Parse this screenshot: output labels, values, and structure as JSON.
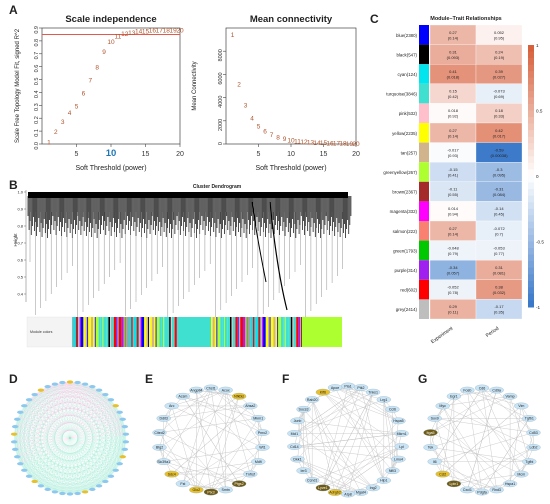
{
  "panel_letters": {
    "a": "A",
    "b": "B",
    "c": "C",
    "d": "D",
    "e": "E",
    "f": "F",
    "g": "G"
  },
  "colors": {
    "threshold_line": "#e3594d",
    "point_label": "#b0552e",
    "dendro": "#000000",
    "heat_pos": "#d7603d",
    "heat_neg": "#3a78c9",
    "network_link": "#c0c0c0",
    "node_fill": "#c9e4f5",
    "hub_fill": "#e7c02c",
    "hub_dark": "#6e5a14"
  },
  "chart_data": [
    {
      "type": "scatter",
      "title": "Scale independence",
      "xlabel": "Soft Threshold (power)",
      "ylabel": "Scale Free Topology Model Fit, signed R^2",
      "xlim": [
        0,
        20
      ],
      "ylim": [
        0.0,
        0.9
      ],
      "xticks": [
        "5",
        "10",
        "15",
        "20"
      ],
      "yticks": [
        "0.0",
        "0.1",
        "0.2",
        "0.3",
        "0.4",
        "0.5",
        "0.6",
        "0.7",
        "0.8",
        "0.9"
      ],
      "highlight_tick": "10",
      "threshold": 0.85,
      "points": [
        {
          "x": 1,
          "y": 0.02
        },
        {
          "x": 2,
          "y": 0.1
        },
        {
          "x": 3,
          "y": 0.18
        },
        {
          "x": 4,
          "y": 0.25
        },
        {
          "x": 5,
          "y": 0.3
        },
        {
          "x": 6,
          "y": 0.4
        },
        {
          "x": 7,
          "y": 0.5
        },
        {
          "x": 8,
          "y": 0.6
        },
        {
          "x": 9,
          "y": 0.72
        },
        {
          "x": 10,
          "y": 0.8
        },
        {
          "x": 11,
          "y": 0.84
        },
        {
          "x": 12,
          "y": 0.86
        },
        {
          "x": 13,
          "y": 0.87
        },
        {
          "x": 14,
          "y": 0.88
        },
        {
          "x": 15,
          "y": 0.88
        },
        {
          "x": 16,
          "y": 0.89
        },
        {
          "x": 17,
          "y": 0.89
        },
        {
          "x": 18,
          "y": 0.89
        },
        {
          "x": 19,
          "y": 0.89
        },
        {
          "x": 20,
          "y": 0.89
        }
      ]
    },
    {
      "type": "scatter",
      "title": "Mean connectivity",
      "xlabel": "Soft Threshold (power)",
      "ylabel": "Mean Connectivity",
      "xlim": [
        0,
        20
      ],
      "ylim": [
        0,
        10000
      ],
      "xticks": [
        "5",
        "10",
        "15",
        "20"
      ],
      "yticks": [
        "0",
        "2000",
        "4000",
        "6000",
        "8000"
      ],
      "points": [
        {
          "x": 1,
          "y": 9500
        },
        {
          "x": 2,
          "y": 5200
        },
        {
          "x": 3,
          "y": 3400
        },
        {
          "x": 4,
          "y": 2300
        },
        {
          "x": 5,
          "y": 1600
        },
        {
          "x": 6,
          "y": 1150
        },
        {
          "x": 7,
          "y": 850
        },
        {
          "x": 8,
          "y": 650
        },
        {
          "x": 9,
          "y": 500
        },
        {
          "x": 10,
          "y": 400
        },
        {
          "x": 11,
          "y": 320
        },
        {
          "x": 12,
          "y": 260
        },
        {
          "x": 13,
          "y": 220
        },
        {
          "x": 14,
          "y": 190
        },
        {
          "x": 15,
          "y": 160
        },
        {
          "x": 16,
          "y": 140
        },
        {
          "x": 17,
          "y": 120
        },
        {
          "x": 18,
          "y": 110
        },
        {
          "x": 19,
          "y": 100
        },
        {
          "x": 20,
          "y": 90
        }
      ]
    },
    {
      "type": "heatmap",
      "title": "Module–Trait Relationships",
      "columns": [
        "Experiment",
        "Period"
      ],
      "colorbar_ticks": [
        "1",
        "0.5",
        "0",
        "-0.5",
        "-1"
      ],
      "rows": [
        {
          "module": "blue(2380)",
          "color": "#0000ff",
          "values": [
            0.27,
            0.052
          ],
          "p": [
            "0.14",
            "0.95"
          ]
        },
        {
          "module": "black(547)",
          "color": "#000000",
          "values": [
            0.31,
            0.24
          ],
          "p": [
            "0.093",
            "0.19"
          ]
        },
        {
          "module": "cyan(124)",
          "color": "#00e5ee",
          "values": [
            0.41,
            0.39
          ],
          "p": [
            "0.018",
            "0.027"
          ]
        },
        {
          "module": "turquoise(3846)",
          "color": "#40e0d0",
          "values": [
            0.15,
            -0.073
          ],
          "p": [
            "0.42",
            "0.69"
          ]
        },
        {
          "module": "pink(532)",
          "color": "#ffc0cb",
          "values": [
            0.018,
            0.18
          ],
          "p": [
            "0.92",
            "0.33"
          ]
        },
        {
          "module": "yellow(2235)",
          "color": "#ffff00",
          "values": [
            0.27,
            0.42
          ],
          "p": [
            "0.14",
            "0.017"
          ]
        },
        {
          "module": "tan(257)",
          "color": "#d2b48c",
          "values": [
            -0.017,
            -0.59
          ],
          "p": [
            "0.93",
            "0.00038"
          ]
        },
        {
          "module": "greenyellow(267)",
          "color": "#adff2f",
          "values": [
            -0.15,
            -0.3
          ],
          "p": [
            "0.41",
            "0.095"
          ]
        },
        {
          "module": "brown(2367)",
          "color": "#a52a2a",
          "values": [
            -0.11,
            -0.31
          ],
          "p": [
            "0.55",
            "0.084"
          ]
        },
        {
          "module": "magenta(332)",
          "color": "#ff00ff",
          "values": [
            0.014,
            -0.14
          ],
          "p": [
            "0.94",
            "0.45"
          ]
        },
        {
          "module": "salmon(222)",
          "color": "#fa8072",
          "values": [
            0.27,
            -0.072
          ],
          "p": [
            "0.14",
            "0.7"
          ]
        },
        {
          "module": "green(1793)",
          "color": "#00c800",
          "values": [
            -0.048,
            -0.053
          ],
          "p": [
            "0.79",
            "0.77"
          ]
        },
        {
          "module": "purple(314)",
          "color": "#a020f0",
          "values": [
            -0.34,
            0.31
          ],
          "p": [
            "0.057",
            "0.081"
          ]
        },
        {
          "module": "red(602)",
          "color": "#ff0000",
          "values": [
            -0.052,
            0.38
          ],
          "p": [
            "0.78",
            "0.032"
          ]
        },
        {
          "module": "grey(2414)",
          "color": "#bebebe",
          "values": [
            0.29,
            -0.17
          ],
          "p": [
            "0.11",
            "0.35"
          ]
        }
      ]
    }
  ],
  "dendrogram": {
    "title": "Cluster Dendrogram",
    "ylabel": "Height",
    "yticks": [
      "1.0",
      "0.9",
      "0.8",
      "0.7",
      "0.6",
      "0.5",
      "0.4"
    ],
    "colors_label": "Module colors"
  },
  "network_e": {
    "nodes": [
      {
        "label": "Chst1",
        "hub": false
      },
      {
        "label": "Acox",
        "hub": false
      },
      {
        "label": "Nfkbiz",
        "hub": true
      },
      {
        "label": "Ahsa2",
        "hub": false
      },
      {
        "label": "Mkrn1",
        "hub": false
      },
      {
        "label": "Pnrc2",
        "hub": false
      },
      {
        "label": "Wt1",
        "hub": false
      },
      {
        "label": "Mdfi",
        "hub": false
      },
      {
        "label": "Tnfrsf",
        "hub": false
      },
      {
        "label": "Ptgs2",
        "hub": true
      },
      {
        "label": "Smtn",
        "hub": false
      },
      {
        "label": "Ptx3",
        "hub": true
      },
      {
        "label": "Glo2",
        "hub": true
      },
      {
        "label": "Fst",
        "hub": false
      },
      {
        "label": "Sdc4",
        "hub": true
      },
      {
        "label": "Slc39a1",
        "hub": false
      },
      {
        "label": "Btg2",
        "hub": false
      },
      {
        "label": "Cited2",
        "hub": false
      },
      {
        "label": "Ddit3",
        "hub": false
      },
      {
        "label": "Arc",
        "hub": false
      },
      {
        "label": "Acsm",
        "hub": false
      },
      {
        "label": "Angptl4",
        "hub": false
      }
    ]
  },
  "network_f": {
    "nodes": [
      {
        "label": "Pla1",
        "hub": false
      },
      {
        "label": "Ptk2",
        "hub": false
      },
      {
        "label": "Tnks1",
        "hub": false
      },
      {
        "label": "Lrg1",
        "hub": false
      },
      {
        "label": "Ccl6",
        "hub": false
      },
      {
        "label": "Hspa5",
        "hub": false
      },
      {
        "label": "Mkrn1",
        "hub": false
      },
      {
        "label": "Lpl",
        "hub": false
      },
      {
        "label": "Lmo4",
        "hub": false
      },
      {
        "label": "Nfil3",
        "hub": false
      },
      {
        "label": "Hip1",
        "hub": false
      },
      {
        "label": "Ing2",
        "hub": false
      },
      {
        "label": "Mgat4",
        "hub": false
      },
      {
        "label": "Atp8",
        "hub": false
      },
      {
        "label": "Adrgb2",
        "hub": true
      },
      {
        "label": "Lyve1",
        "hub": true
      },
      {
        "label": "Ccnd1",
        "hub": false
      },
      {
        "label": "Ier3",
        "hub": false
      },
      {
        "label": "Dkk1",
        "hub": false
      },
      {
        "label": "Cd14",
        "hub": false
      },
      {
        "label": "Mcl1",
        "hub": false
      },
      {
        "label": "Junb",
        "hub": false
      },
      {
        "label": "Socs3",
        "hub": false
      },
      {
        "label": "Rab20",
        "hub": false
      },
      {
        "label": "Klf6",
        "hub": true
      },
      {
        "label": "Apoe",
        "hub": false
      }
    ]
  },
  "network_g": {
    "nodes": [
      {
        "label": "Cd6",
        "hub": false
      },
      {
        "label": "Cd9a",
        "hub": false
      },
      {
        "label": "Vamp",
        "hub": false
      },
      {
        "label": "Vim",
        "hub": false
      },
      {
        "label": "Tgfb1",
        "hub": false
      },
      {
        "label": "Cd53",
        "hub": false
      },
      {
        "label": "Ldb2",
        "hub": false
      },
      {
        "label": "Tgfbi",
        "hub": false
      },
      {
        "label": "Mcm",
        "hub": false
      },
      {
        "label": "Hspa1",
        "hub": false
      },
      {
        "label": "Rnd3",
        "hub": false
      },
      {
        "label": "Pdgfa",
        "hub": false
      },
      {
        "label": "Cxcl1",
        "hub": false
      },
      {
        "label": "Lpin1",
        "hub": true
      },
      {
        "label": "Ccl2",
        "hub": true
      },
      {
        "label": "Il6",
        "hub": false
      },
      {
        "label": "Tek",
        "hub": false
      },
      {
        "label": "Itga5",
        "hub": true
      },
      {
        "label": "Sox9",
        "hub": false
      },
      {
        "label": "Myc",
        "hub": false
      },
      {
        "label": "Egr1",
        "hub": false
      },
      {
        "label": "Fosb",
        "hub": false
      }
    ]
  }
}
